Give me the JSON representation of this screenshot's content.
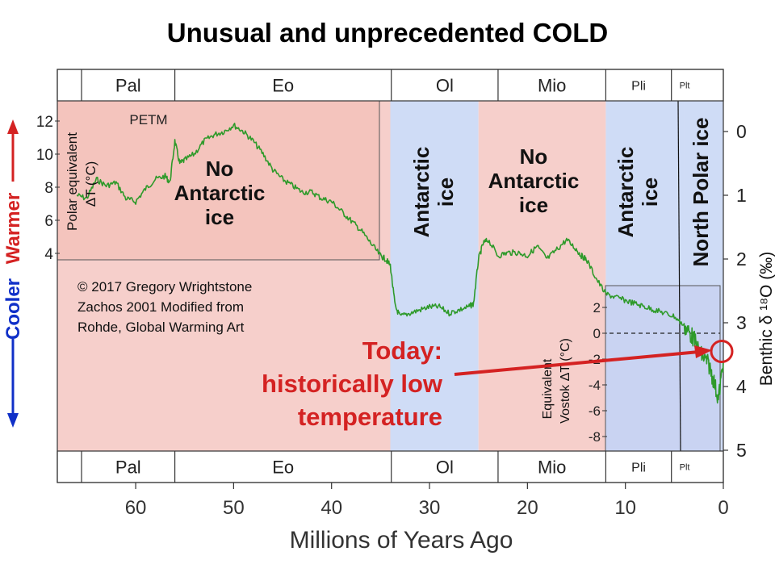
{
  "chart_data": {
    "type": "line",
    "title": "Unusual and unprecedented COLD",
    "xlabel": "Millions of Years Ago",
    "x_ticks": [
      "60",
      "50",
      "40",
      "30",
      "20",
      "10",
      "0"
    ],
    "x_tick_values": [
      60,
      50,
      40,
      30,
      20,
      10,
      0
    ],
    "xlim": [
      68,
      0
    ],
    "right_axis": {
      "label": "Benthic δ ¹⁸O (‰)",
      "ticks": [
        "0",
        "1",
        "2",
        "3",
        "4",
        "5"
      ],
      "tick_values": [
        0,
        1,
        2,
        3,
        4,
        5
      ],
      "range": [
        -0.5,
        5
      ]
    },
    "left_inset_axis": {
      "label_line1": "Polar equivalent",
      "label_line2": "ΔT (°C)",
      "ticks": [
        "12",
        "10",
        "8",
        "6",
        "4"
      ],
      "tick_values": [
        12,
        10,
        8,
        6,
        4
      ]
    },
    "vostok_inset_axis": {
      "label_line1": "Equivalent",
      "label_line2": "Vostok ΔT (°C)",
      "ticks": [
        "2",
        "0",
        "-2",
        "-4",
        "-6",
        "-8"
      ],
      "tick_values": [
        2,
        0,
        -2,
        -4,
        -6,
        -8
      ]
    },
    "side_axis": {
      "cooler": "Cooler",
      "warmer": "Warmer"
    },
    "epochs": [
      "Pal",
      "Eo",
      "Ol",
      "Mio",
      "Pli",
      "Plt"
    ],
    "epoch_bounds": [
      56,
      33.9,
      23,
      12,
      5.3,
      2.6
    ],
    "regions": [
      {
        "label_lines": [
          "No",
          "Antarctic",
          "ice"
        ],
        "start": 68,
        "end": 34,
        "fill": "pink"
      },
      {
        "label_lines": [
          "Antarctic",
          "ice"
        ],
        "start": 34,
        "end": 25,
        "fill": "blue"
      },
      {
        "label_lines": [
          "No",
          "Antarctic",
          "ice"
        ],
        "start": 25,
        "end": 12,
        "fill": "pink"
      },
      {
        "label_lines": [
          "Antarctic",
          "ice"
        ],
        "start": 12,
        "end": 4,
        "fill": "blue"
      },
      {
        "label_lines": [
          "North Polar ice"
        ],
        "start": 4,
        "end": 0,
        "fill": "blue"
      }
    ],
    "annotations": {
      "petm": "PETM",
      "copyright_line1": "© 2017 Gregory Wrightstone",
      "copyright_line2": "Zachos 2001 Modified from",
      "copyright_line3": "Rohde, Global Warming Art",
      "callout_line1": "Today:",
      "callout_line2": "historically low",
      "callout_line3": "temperature"
    },
    "series": [
      {
        "x": [
          66,
          65,
          64,
          63,
          62,
          61,
          60,
          59,
          58,
          57,
          56.5,
          56,
          55.5,
          55,
          54,
          53,
          52,
          51,
          50,
          49,
          48,
          47,
          46,
          45,
          44,
          43,
          42,
          41,
          40,
          39,
          38,
          37,
          36,
          35,
          34.5,
          34,
          33.5,
          33,
          32,
          31,
          30,
          29,
          28,
          27,
          26,
          25.5,
          25,
          24.5,
          24,
          23,
          22,
          21,
          20,
          19,
          18,
          17,
          16,
          15,
          14.5,
          14,
          13,
          12,
          11,
          10,
          9,
          8,
          7,
          6,
          5,
          4,
          3.5,
          3,
          2.5,
          2,
          1.5,
          1,
          0.5,
          0
        ],
        "y": [
          1.0,
          1.05,
          0.75,
          0.85,
          0.8,
          1.05,
          1.1,
          0.9,
          0.75,
          0.7,
          0.8,
          0.15,
          0.5,
          0.45,
          0.35,
          0.15,
          0.05,
          0.0,
          -0.1,
          0.0,
          0.15,
          0.35,
          0.6,
          0.75,
          0.85,
          0.95,
          0.95,
          1.05,
          1.1,
          1.25,
          1.4,
          1.55,
          1.75,
          1.95,
          2.0,
          2.1,
          2.75,
          2.9,
          2.85,
          2.8,
          2.75,
          2.75,
          2.85,
          2.8,
          2.75,
          2.7,
          2.0,
          1.75,
          1.7,
          1.95,
          1.9,
          1.9,
          1.95,
          1.8,
          2.0,
          1.85,
          1.7,
          1.85,
          1.95,
          2.0,
          2.3,
          2.55,
          2.6,
          2.65,
          2.7,
          2.75,
          2.8,
          2.85,
          2.9,
          3.05,
          3.15,
          3.25,
          3.45,
          3.55,
          3.65,
          3.9,
          4.2,
          3.6
        ]
      }
    ],
    "today_marker_value": 3.45,
    "vostok_zero_value": 3.05
  }
}
